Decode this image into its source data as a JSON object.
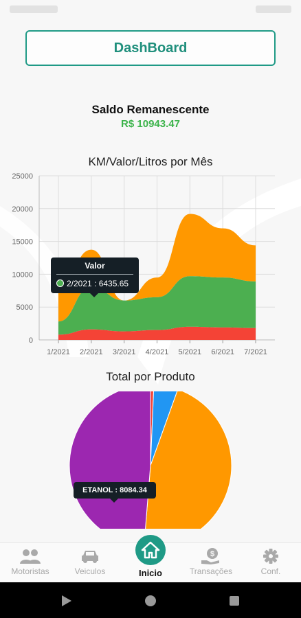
{
  "header": {
    "dashboard_label": "DashBoard"
  },
  "saldo": {
    "title": "Saldo Remanescente",
    "value": "R$ 10943.47"
  },
  "area_chart_title": "KM/Valor/Litros por Mês",
  "pie_chart_title": "Total por Produto",
  "tooltip_area": {
    "series": "Valor",
    "text": "2/2021 : 6435.65"
  },
  "tooltip_pie": {
    "text": "ETANOL : 8084.34"
  },
  "colors": {
    "accent": "#1f9a86",
    "orange": "#ff9800",
    "green": "#4caf50",
    "red": "#f44336",
    "purple": "#9c27b0",
    "blue": "#2196f3"
  },
  "chart_data": [
    {
      "type": "area",
      "stacked": true,
      "title": "KM/Valor/Litros por Mês",
      "categories": [
        "1/2021",
        "2/2021",
        "3/2021",
        "4/2021",
        "5/2021",
        "6/2021",
        "7/2021"
      ],
      "ylim": [
        0,
        25000
      ],
      "yticks": [
        0,
        5000,
        10000,
        15000,
        20000,
        25000
      ],
      "grid": true,
      "series": [
        {
          "values": [
            800,
            1600,
            1300,
            1500,
            2000,
            1900,
            1800
          ],
          "color": "#f44336"
        },
        {
          "name": "Valor",
          "values": [
            2000,
            6435.65,
            4700,
            5000,
            7700,
            7600,
            7100
          ],
          "color": "#4caf50"
        },
        {
          "values": [
            5000,
            5700,
            0,
            3000,
            9500,
            7500,
            5500
          ],
          "color": "#ff9800"
        }
      ]
    },
    {
      "type": "pie",
      "title": "Total por Produto",
      "slices": [
        {
          "label": "ETANOL",
          "value": 8084.34,
          "color": "#9c27b0"
        },
        {
          "value": 110,
          "color": "#f44336"
        },
        {
          "value": 800,
          "color": "#2196f3"
        },
        {
          "value": 7600,
          "color": "#ff9800"
        }
      ]
    }
  ],
  "nav": {
    "items": [
      {
        "label": "Motoristas",
        "icon": "people-icon"
      },
      {
        "label": "Veiculos",
        "icon": "car-icon"
      },
      {
        "label": "Inicio",
        "icon": "home-icon"
      },
      {
        "label": "Transações",
        "icon": "money-hand-icon"
      },
      {
        "label": "Conf.",
        "icon": "gear-icon"
      }
    ]
  }
}
